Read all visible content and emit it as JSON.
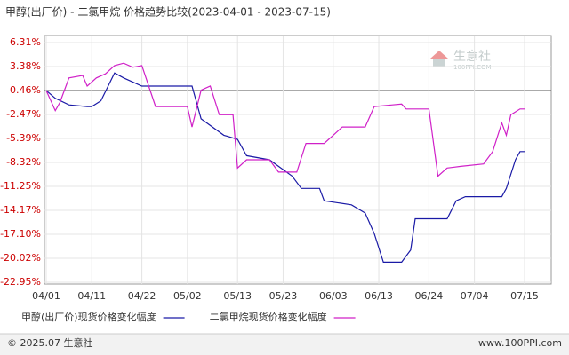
{
  "chart_data": {
    "type": "line",
    "title": "甲醇(出厂价) - 二氯甲烷 价格趋势比较(2023-04-01 - 2023-07-15)",
    "ylim": [
      -22.95,
      6.31
    ],
    "yticks": [
      {
        "value": 6.31,
        "label": "6.31%"
      },
      {
        "value": 3.38,
        "label": "3.38%"
      },
      {
        "value": 0.46,
        "label": "0.46%"
      },
      {
        "value": -2.47,
        "label": "-2.47%"
      },
      {
        "value": -5.39,
        "label": "-5.39%"
      },
      {
        "value": -8.32,
        "label": "-8.32%"
      },
      {
        "value": -11.25,
        "label": "-11.25%"
      },
      {
        "value": -14.17,
        "label": "-14.17%"
      },
      {
        "value": -17.1,
        "label": "-17.10%"
      },
      {
        "value": -20.02,
        "label": "-20.02%"
      },
      {
        "value": -22.95,
        "label": "-22.95%"
      }
    ],
    "xticks": [
      "04/01",
      "04/11",
      "04/22",
      "05/02",
      "05/13",
      "05/23",
      "06/03",
      "06/13",
      "06/24",
      "07/04",
      "07/15"
    ],
    "grid": true,
    "series": [
      {
        "name": "甲醇(出厂价)现货价格变化幅度",
        "color": "#1a1aa6",
        "x": [
          "04/01",
          "04/03",
          "04/06",
          "04/10",
          "04/11",
          "04/13",
          "04/16",
          "04/18",
          "04/20",
          "04/22",
          "05/03",
          "05/05",
          "05/10",
          "05/13",
          "05/15",
          "05/20",
          "05/25",
          "05/27",
          "05/31",
          "06/01",
          "06/07",
          "06/10",
          "06/12",
          "06/14",
          "06/18",
          "06/20",
          "06/21",
          "06/28",
          "06/30",
          "07/02",
          "07/10",
          "07/11",
          "07/13",
          "07/14",
          "07/15"
        ],
        "values": [
          0.46,
          -0.5,
          -1.3,
          -1.5,
          -1.5,
          -0.8,
          2.6,
          2.0,
          1.5,
          1.0,
          1.0,
          -3.0,
          -5.0,
          -5.5,
          -7.5,
          -8.0,
          -10.0,
          -11.5,
          -11.5,
          -13.0,
          -13.5,
          -14.5,
          -17.0,
          -20.5,
          -20.5,
          -19.0,
          -15.2,
          -15.2,
          -13.0,
          -12.5,
          -12.5,
          -11.5,
          -8.0,
          -7.0,
          -7.0
        ]
      },
      {
        "name": "二氯甲烷现货价格变化幅度",
        "color": "#d020c8",
        "x": [
          "04/01",
          "04/03",
          "04/04",
          "04/06",
          "04/09",
          "04/10",
          "04/12",
          "04/14",
          "04/16",
          "04/18",
          "04/20",
          "04/22",
          "04/25",
          "05/02",
          "05/03",
          "05/05",
          "05/07",
          "05/09",
          "05/12",
          "05/13",
          "05/15",
          "05/20",
          "05/22",
          "05/26",
          "05/28",
          "06/01",
          "06/03",
          "06/05",
          "06/10",
          "06/12",
          "06/16",
          "06/18",
          "06/19",
          "06/24",
          "06/26",
          "06/28",
          "07/01",
          "07/06",
          "07/08",
          "07/10",
          "07/11",
          "07/12",
          "07/14",
          "07/15"
        ],
        "values": [
          0.46,
          -2.0,
          -1.0,
          2.0,
          2.3,
          1.0,
          2.0,
          2.5,
          3.5,
          3.8,
          3.3,
          3.5,
          -1.5,
          -1.5,
          -4.0,
          0.5,
          1.0,
          -2.5,
          -2.5,
          -9.0,
          -8.0,
          -8.0,
          -9.5,
          -9.5,
          -6.0,
          -6.0,
          -5.0,
          -4.0,
          -4.0,
          -1.5,
          -1.3,
          -1.2,
          -1.8,
          -1.8,
          -10.0,
          -9.0,
          -8.8,
          -8.5,
          -7.0,
          -3.5,
          -5.0,
          -2.5,
          -1.8,
          -1.8
        ]
      }
    ],
    "watermark": {
      "name": "生意社",
      "site": "100PPI.COM"
    },
    "footer": {
      "left": "© 2025.07 生意社",
      "right": "www.100PPI.com"
    }
  }
}
